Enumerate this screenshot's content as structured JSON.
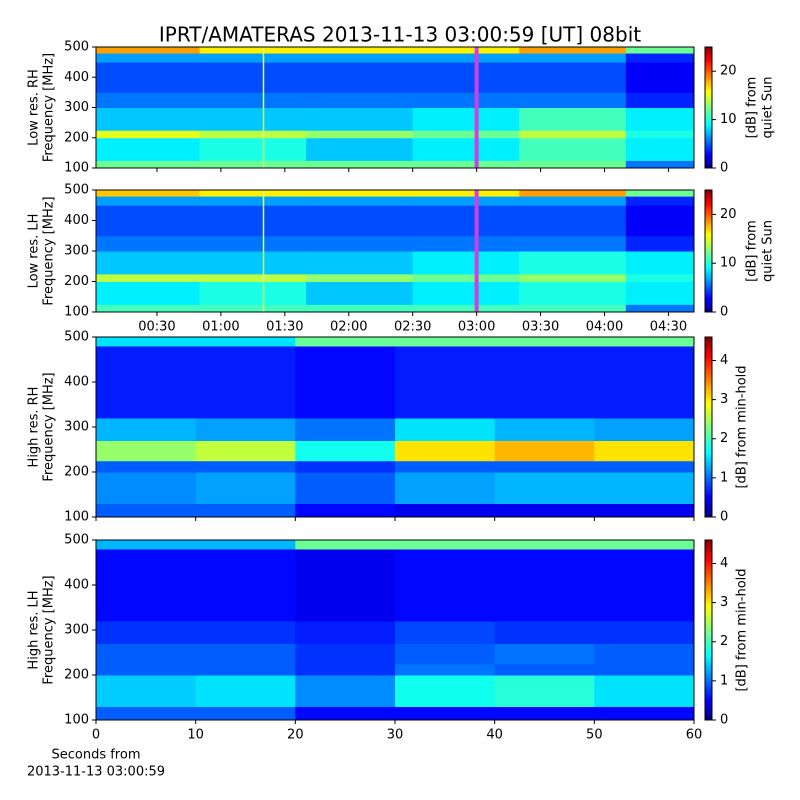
{
  "chart_data": [
    {
      "type": "heatmap",
      "title": "IPRT/AMATERAS 2013-11-13 03:00:59 [UT]   08bit",
      "ylabel": [
        "Low res. RH",
        "Frequency [MHz]"
      ],
      "clabel": [
        "[dB] from",
        "quiet Sun"
      ],
      "x_bins": [
        1.4,
        50,
        100,
        150,
        200,
        250,
        282
      ],
      "y_bins": [
        100,
        125,
        200,
        225,
        300,
        350,
        450,
        480,
        500
      ],
      "z": [
        [
          12,
          12,
          12,
          12,
          12,
          6
        ],
        [
          9,
          10,
          8,
          9,
          11,
          9
        ],
        [
          15,
          14,
          13,
          12,
          14,
          10
        ],
        [
          8,
          8,
          8,
          9,
          11,
          9
        ],
        [
          6,
          6,
          6,
          6,
          6,
          4
        ],
        [
          5,
          5,
          5,
          5,
          5,
          3
        ],
        [
          7,
          7,
          7,
          7,
          7,
          4
        ],
        [
          18,
          16,
          16,
          16,
          18,
          12
        ]
      ],
      "xlim": [
        1.4,
        282
      ],
      "xticks": [
        30,
        60,
        90,
        120,
        150,
        180,
        210,
        240,
        270
      ],
      "show_xticklabels": false,
      "ylim": [
        100,
        500
      ],
      "yticks": [
        100,
        200,
        300,
        400,
        500
      ],
      "clim": [
        0,
        25
      ],
      "cticks": [
        0,
        10,
        20
      ],
      "vlines": [
        {
          "x": 80,
          "color": "#c8ff80"
        },
        {
          "x": 180,
          "color": "#d040e0"
        }
      ]
    },
    {
      "type": "heatmap",
      "ylabel": [
        "Low res. LH",
        "Frequency [MHz]"
      ],
      "clabel": [
        "[dB] from",
        "quiet Sun"
      ],
      "x_bins": [
        1.4,
        50,
        100,
        150,
        200,
        250,
        282
      ],
      "y_bins": [
        100,
        125,
        200,
        225,
        300,
        350,
        450,
        480,
        500
      ],
      "z": [
        [
          11,
          11,
          11,
          11,
          11,
          6
        ],
        [
          9,
          10,
          8,
          9,
          10,
          9
        ],
        [
          14,
          14,
          13,
          12,
          13,
          10
        ],
        [
          8,
          8,
          8,
          9,
          10,
          9
        ],
        [
          6,
          6,
          6,
          6,
          6,
          4
        ],
        [
          5,
          5,
          5,
          5,
          5,
          3
        ],
        [
          7,
          7,
          7,
          7,
          7,
          4
        ],
        [
          17,
          16,
          16,
          16,
          18,
          12
        ]
      ],
      "xlim": [
        1.4,
        282
      ],
      "xticks": [
        {
          "value": 30,
          "label": "00:30"
        },
        {
          "value": 60,
          "label": "01:00"
        },
        {
          "value": 90,
          "label": "01:30"
        },
        {
          "value": 120,
          "label": "02:00"
        },
        {
          "value": 150,
          "label": "02:30"
        },
        {
          "value": 180,
          "label": "03:00"
        },
        {
          "value": 210,
          "label": "03:30"
        },
        {
          "value": 240,
          "label": "04:00"
        },
        {
          "value": 270,
          "label": "04:30"
        }
      ],
      "show_xticklabels": true,
      "ylim": [
        100,
        500
      ],
      "yticks": [
        100,
        200,
        300,
        400,
        500
      ],
      "clim": [
        0,
        25
      ],
      "cticks": [
        0,
        10,
        20
      ],
      "vlines": [
        {
          "x": 80,
          "color": "#c8ff80"
        },
        {
          "x": 180,
          "color": "#d040e0"
        }
      ]
    },
    {
      "type": "heatmap",
      "ylabel": [
        "High res. RH",
        "Frequency [MHz]"
      ],
      "clabel": [
        "[dB] from min-hold"
      ],
      "x_bins": [
        0,
        10,
        20,
        30,
        40,
        50,
        60
      ],
      "y_bins": [
        100,
        130,
        200,
        225,
        270,
        320,
        480,
        500
      ],
      "z": [
        [
          1,
          1,
          0.6,
          0.5,
          0.5,
          0.5
        ],
        [
          1.2,
          1.3,
          1,
          1.3,
          1.4,
          1.4
        ],
        [
          1,
          1,
          0.8,
          1,
          1,
          1
        ],
        [
          2.4,
          2.6,
          1.8,
          3,
          3.2,
          3
        ],
        [
          1.4,
          1.3,
          1.1,
          1.6,
          1.4,
          1.3
        ],
        [
          0.7,
          0.7,
          0.6,
          0.7,
          0.7,
          0.7
        ],
        [
          1.6,
          1.6,
          2.2,
          2.2,
          2.2,
          2.2
        ]
      ],
      "xlim": [
        0,
        60
      ],
      "xticks": [
        0,
        10,
        20,
        30,
        40,
        50,
        60
      ],
      "show_xticklabels": false,
      "ylim": [
        100,
        500
      ],
      "yticks": [
        100,
        200,
        300,
        400,
        500
      ],
      "clim": [
        0,
        4.6
      ],
      "cticks": [
        0,
        1,
        2,
        3,
        4
      ]
    },
    {
      "type": "heatmap",
      "ylabel": [
        "High res. LH",
        "Frequency [MHz]"
      ],
      "clabel": [
        "[dB] from min-hold"
      ],
      "xlabel": [
        "Seconds from",
        "2013-11-13 03:00:59"
      ],
      "x_bins": [
        0,
        10,
        20,
        30,
        40,
        50,
        60
      ],
      "y_bins": [
        100,
        130,
        200,
        225,
        270,
        320,
        480,
        500
      ],
      "z": [
        [
          1,
          1,
          0.6,
          0.6,
          0.6,
          0.6
        ],
        [
          1.5,
          1.6,
          1.2,
          1.8,
          1.9,
          1.6
        ],
        [
          1,
          1,
          0.8,
          1.1,
          1,
          1
        ],
        [
          1,
          1,
          0.8,
          1,
          1.1,
          1
        ],
        [
          0.8,
          0.8,
          0.7,
          0.9,
          0.8,
          0.8
        ],
        [
          0.6,
          0.6,
          0.5,
          0.6,
          0.6,
          0.6
        ],
        [
          1.4,
          1.4,
          2.2,
          2.2,
          2.2,
          2.2
        ]
      ],
      "xlim": [
        0,
        60
      ],
      "xticks": [
        0,
        10,
        20,
        30,
        40,
        50,
        60
      ],
      "show_xticklabels": true,
      "ylim": [
        100,
        500
      ],
      "yticks": [
        100,
        200,
        300,
        400,
        500
      ],
      "clim": [
        0,
        4.6
      ],
      "cticks": [
        0,
        1,
        2,
        3,
        4
      ]
    }
  ]
}
